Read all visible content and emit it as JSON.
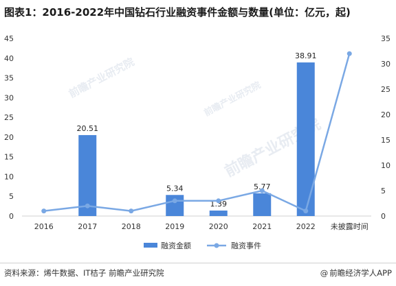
{
  "title": "图表1：2016-2022年中国钻石行业融资事件金额与数量(单位：亿元，起)",
  "footer": {
    "source": "资料来源：烯牛数据、IT桔子 前瞻产业研究院",
    "brand_symbol": "@",
    "brand": "前瞻经济学人APP"
  },
  "watermark": {
    "text": "前瞻产业研究院"
  },
  "colors": {
    "bar": "#4a86d9",
    "line": "#7aa8e4",
    "axis_text": "#333333",
    "axis_line": "#d0d0d0"
  },
  "chart_data": {
    "type": "bar",
    "categories": [
      "2016",
      "2017",
      "2018",
      "2019",
      "2020",
      "2021",
      "2022",
      "未披露时间"
    ],
    "series": [
      {
        "name": "融资金额",
        "type": "bar",
        "axis": "left",
        "values": [
          null,
          20.51,
          null,
          5.34,
          1.39,
          5.77,
          38.91,
          null
        ],
        "labels": [
          "",
          "20.51",
          "",
          "5.34",
          "1.39",
          "5.77",
          "38.91",
          ""
        ]
      },
      {
        "name": "融资事件",
        "type": "line",
        "axis": "right",
        "values": [
          1,
          2,
          1,
          3,
          3,
          5,
          1,
          32
        ]
      }
    ],
    "y_left": {
      "min": 0,
      "max": 45,
      "ticks": [
        "0",
        "5",
        "10",
        "15",
        "20",
        "25",
        "30",
        "35",
        "40",
        "45"
      ]
    },
    "y_right": {
      "min": 0,
      "max": 35,
      "ticks": [
        "0",
        "5",
        "10",
        "15",
        "20",
        "25",
        "30",
        "35"
      ]
    },
    "grid": false,
    "legend_position": "bottom"
  }
}
